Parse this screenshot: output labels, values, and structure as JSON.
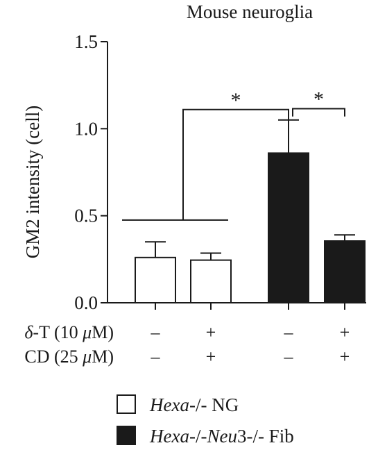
{
  "chart_data": {
    "type": "bar",
    "title": "Mouse neuroglia",
    "ylabel": "GM2 intensity (cell)",
    "ylim": [
      0,
      1.5
    ],
    "yticks": [
      0.0,
      0.5,
      1.0,
      1.5
    ],
    "ytick_labels": [
      "0.0",
      "0.5",
      "1.0",
      "1.5"
    ],
    "bars": [
      {
        "group": "Hexa-/- NG",
        "fill": "white",
        "value": 0.26,
        "error": 0.09,
        "dT": "–",
        "CD": "–"
      },
      {
        "group": "Hexa-/- NG",
        "fill": "white",
        "value": 0.245,
        "error": 0.04,
        "dT": "+",
        "CD": "+"
      },
      {
        "group": "Hexa-/-Neu3-/- Fib",
        "fill": "black",
        "value": 0.86,
        "error": 0.19,
        "dT": "–",
        "CD": "–"
      },
      {
        "group": "Hexa-/-Neu3-/- Fib",
        "fill": "black",
        "value": 0.355,
        "error": 0.035,
        "dT": "+",
        "CD": "+"
      }
    ],
    "treatments": {
      "dT_label_prefix": "δ",
      "dT_label_mid": "-T (10 ",
      "dT_label_mu": "μ",
      "dT_label_end": "M)",
      "CD_label_prefix": "CD (25 ",
      "CD_label_mu": "μ",
      "CD_label_end": "M)"
    },
    "significance": [
      {
        "label": "*",
        "from": "white-group",
        "to": 2
      },
      {
        "label": "*",
        "from": 2,
        "to": 3
      }
    ],
    "legend": [
      {
        "fill": "white",
        "italic": "Hexa",
        "rest": "-/- NG"
      },
      {
        "fill": "black",
        "italic1": "Hexa",
        "mid": "-/-",
        "italic2": "Neu",
        "rest": "3-/- Fib"
      }
    ]
  }
}
